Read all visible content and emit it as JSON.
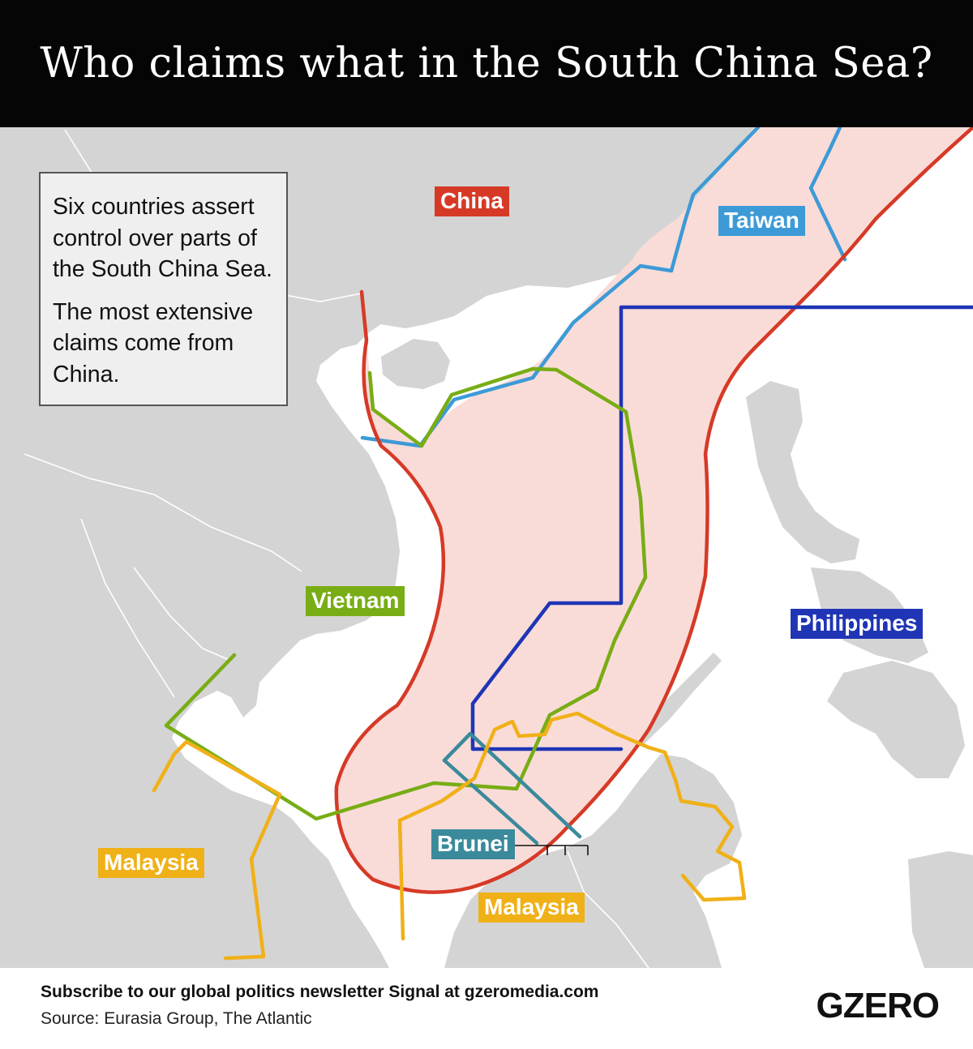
{
  "title": "Who claims what in the South China Sea?",
  "info_box": {
    "para1": "Six countries assert control over parts of the South China Sea.",
    "para2": "The most extensive claims come from China."
  },
  "claims": [
    {
      "key": "china",
      "label": "China",
      "color": "#d63a27"
    },
    {
      "key": "taiwan",
      "label": "Taiwan",
      "color": "#3d9ad6"
    },
    {
      "key": "vietnam",
      "label": "Vietnam",
      "color": "#78ad15"
    },
    {
      "key": "philippines",
      "label": "Philippines",
      "color": "#1f35b5"
    },
    {
      "key": "brunei",
      "label": "Brunei",
      "color": "#3a8a9b"
    },
    {
      "key": "malaysia",
      "label": "Malaysia",
      "color": "#f0b018"
    }
  ],
  "colors": {
    "land": "#d4d4d4",
    "sea": "#ffffff",
    "china_claim_fill": "#f9dcd8",
    "title_bar": "#050505"
  },
  "footer": {
    "subscribe": "Subscribe to our global politics newsletter Signal at gzeromedia.com",
    "source": "Source: Eurasia Group, The Atlantic",
    "logo": "GZERO"
  }
}
